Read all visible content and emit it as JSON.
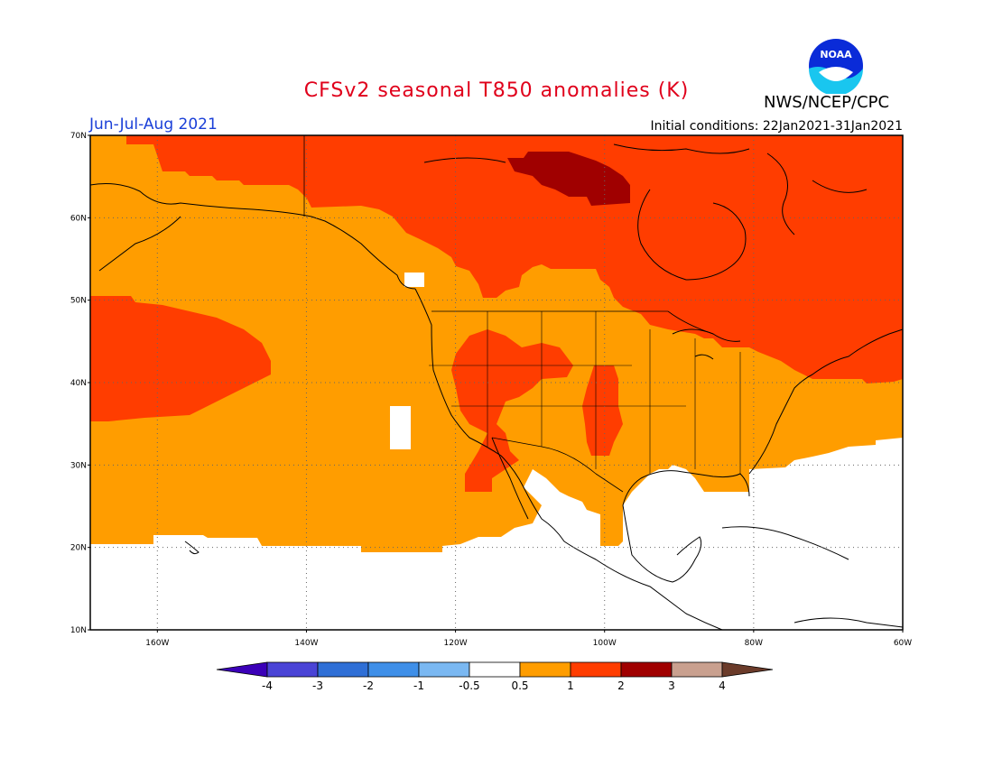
{
  "title": "CFSv2 seasonal T850 anomalies (K)",
  "agency": "NWS/NCEP/CPC",
  "season": "Jun-Jul-Aug 2021",
  "initial_conditions": "Initial conditions: 22Jan2021-31Jan2021",
  "logo_text": "NOAA",
  "lat_labels": [
    "70N",
    "60N",
    "50N",
    "40N",
    "30N",
    "20N",
    "10N"
  ],
  "lon_labels": [
    "160W",
    "140W",
    "120W",
    "100W",
    "80W",
    "60W"
  ],
  "colorbar": {
    "labels": [
      "-4",
      "-3",
      "-2",
      "-1",
      "-0.5",
      "0.5",
      "1",
      "2",
      "3",
      "4"
    ],
    "colors": [
      "#3b00b8",
      "#4a44d6",
      "#2f6fd6",
      "#3f8fe8",
      "#7ab8f2",
      "#ffffff",
      "#ff9d00",
      "#ff3d00",
      "#a00000",
      "#c9a08f",
      "#6b3b2a"
    ]
  },
  "colors": {
    "low_anomaly_0_5_to_1": "#ff9d00",
    "mid_anomaly_1_to_2": "#ff3d00",
    "high_anomaly_2_to_3": "#a00000",
    "neutral": "#ffffff",
    "title": "#e0001b",
    "season": "#1a3fd8"
  }
}
